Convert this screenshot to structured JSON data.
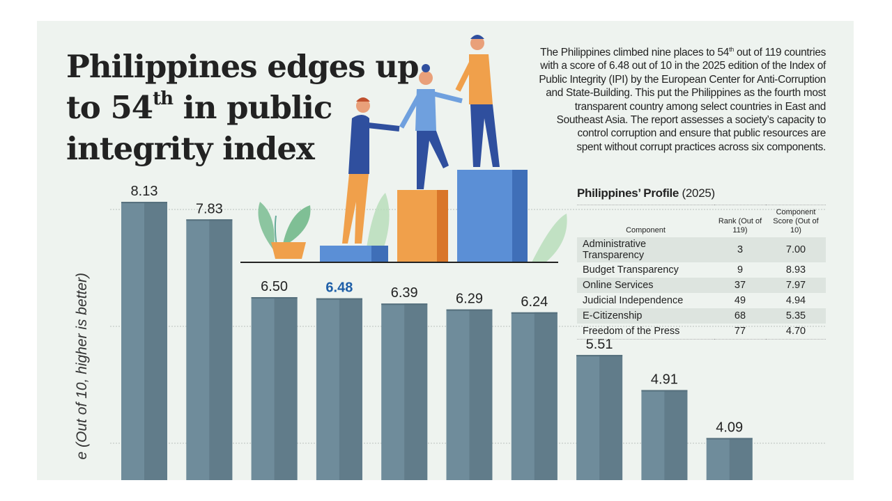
{
  "headline": {
    "line1": "Philippines edges up",
    "line2_pre": "to 54",
    "line2_sup": "th",
    "line2_post": " in public",
    "line3": "integrity index"
  },
  "description": {
    "line1_pre": "The Philippines climbed nine places to 54",
    "line1_sup": "th",
    "line1_post": " out of 119 countries",
    "lines": [
      "with a score of 6.48 out of 10 in the 2025 edition of the Index of",
      "Public Integrity (IPI) by the European Center for Anti-Corruption",
      "and State-Building. This put the Philippines as the fourth most",
      "transparent country among select countries in East and",
      "Southeast Asia. The report assesses a society’s capacity to",
      "control corruption and ensure that public resources are",
      "spent without corrupt practices across six components."
    ]
  },
  "profile": {
    "title": "Philippines’ Profile",
    "year": "(2025)",
    "headers": {
      "component": "Component",
      "rank": "Rank (Out of 119)",
      "score": "Component Score (Out of 10)"
    },
    "rows": [
      {
        "component": "Administrative Transparency",
        "rank": "3",
        "score": "7.00"
      },
      {
        "component": "Budget Transparency",
        "rank": "9",
        "score": "8.93"
      },
      {
        "component": "Online Services",
        "rank": "37",
        "score": "7.97"
      },
      {
        "component": "Judicial Independence",
        "rank": "49",
        "score": "4.94"
      },
      {
        "component": "E-Citizenship",
        "rank": "68",
        "score": "5.35"
      },
      {
        "component": "Freedom of the Press",
        "rank": "77",
        "score": "4.70"
      }
    ]
  },
  "chart_data": {
    "type": "bar",
    "ylabel": "e (Out of 10, higher is better)",
    "values": [
      8.13,
      7.83,
      6.5,
      6.48,
      6.39,
      6.29,
      6.24,
      5.51,
      4.91,
      4.09
    ],
    "labels": [
      "8.13",
      "7.83",
      "6.50",
      "6.48",
      "6.39",
      "6.29",
      "6.24",
      "5.51",
      "4.91",
      "4.09"
    ],
    "highlight_index": 3,
    "gridlines": [
      4,
      6,
      8
    ],
    "colors": {
      "bar": "#6f8c9b",
      "bar_shade": "#617c8a",
      "label": "#222222",
      "highlight_label": "#1f5fa8"
    }
  }
}
